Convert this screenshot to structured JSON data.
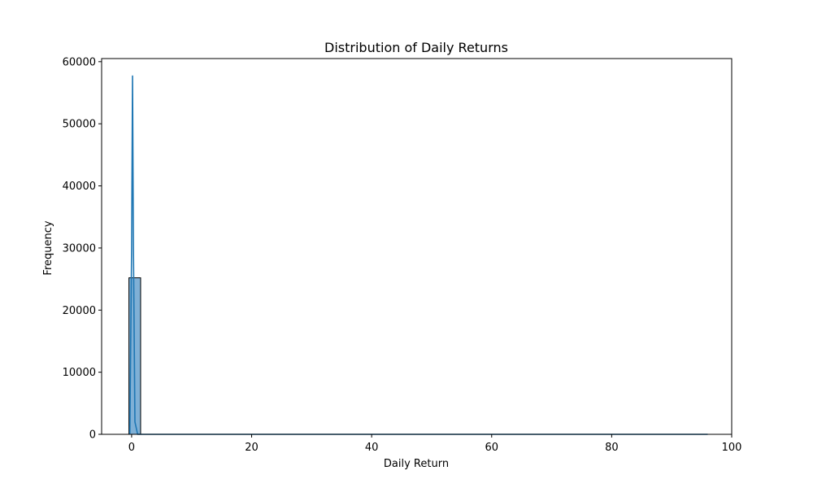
{
  "chart_data": {
    "type": "bar",
    "subtype": "histogram-with-kde",
    "title": "Distribution of Daily Returns",
    "xlabel": "Daily Return",
    "ylabel": "Frequency",
    "xlim": [
      -5,
      100
    ],
    "ylim": [
      0,
      60500
    ],
    "x_ticks": [
      0,
      20,
      40,
      60,
      80,
      100
    ],
    "x_tick_labels": [
      "0",
      "20",
      "40",
      "60",
      "80",
      "100"
    ],
    "y_ticks": [
      0,
      10000,
      20000,
      30000,
      40000,
      50000,
      60000
    ],
    "y_tick_labels": [
      "0",
      "10000",
      "20000",
      "30000",
      "40000",
      "50000",
      "60000"
    ],
    "grid": false,
    "bins": [
      {
        "x0": -0.45,
        "x1": 1.5,
        "count": 25200
      },
      {
        "x0": 1.5,
        "x1": 96.0,
        "count": 0
      }
    ],
    "kde": {
      "x": [
        -0.3,
        0.0,
        0.15,
        0.3,
        0.55,
        1.0,
        3,
        10,
        30,
        60,
        96
      ],
      "y": [
        0,
        30000,
        57700,
        30000,
        2000,
        0,
        0,
        0,
        0,
        0,
        0
      ]
    },
    "colors": {
      "bar_fill": "#7fb0d6",
      "bar_edge": "#000000",
      "kde_line": "#1f77b4",
      "axis": "#000000"
    }
  }
}
